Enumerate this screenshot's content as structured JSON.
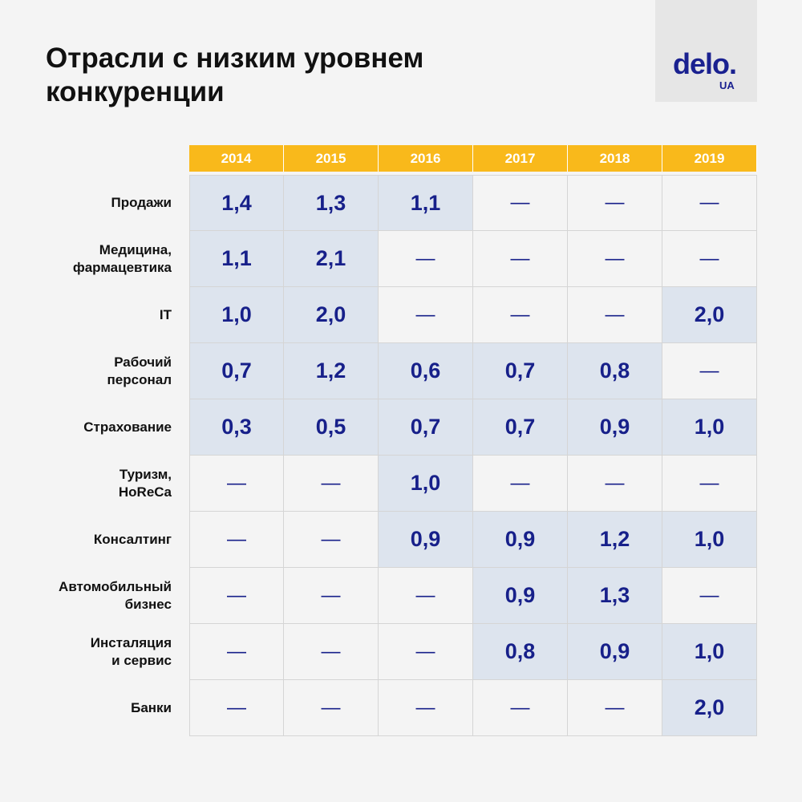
{
  "title": "Отрасли с низким уровнем конкуренции",
  "logo": {
    "main": "delo.",
    "sub": "UA"
  },
  "colors": {
    "header": "#f9b91b",
    "highlight": "#dde4ee",
    "value_text": "#17208a",
    "background": "#f4f4f4"
  },
  "chart_data": {
    "type": "table",
    "title": "Отрасли с низким уровнем конкуренции",
    "columns": [
      "2014",
      "2015",
      "2016",
      "2017",
      "2018",
      "2019"
    ],
    "rows": [
      {
        "label": "Продажи",
        "values": [
          "1,4",
          "1,3",
          "1,1",
          "—",
          "—",
          "—"
        ]
      },
      {
        "label": "Медицина, фармацевтика",
        "values": [
          "1,1",
          "2,1",
          "—",
          "—",
          "—",
          "—"
        ]
      },
      {
        "label": "IT",
        "values": [
          "1,0",
          "2,0",
          "—",
          "—",
          "—",
          "2,0"
        ]
      },
      {
        "label": "Рабочий персонал",
        "values": [
          "0,7",
          "1,2",
          "0,6",
          "0,7",
          "0,8",
          "—"
        ]
      },
      {
        "label": "Страхование",
        "values": [
          "0,3",
          "0,5",
          "0,7",
          "0,7",
          "0,9",
          "1,0"
        ]
      },
      {
        "label": "Туризм, HoReCa",
        "values": [
          "—",
          "—",
          "1,0",
          "—",
          "—",
          "—"
        ]
      },
      {
        "label": "Консалтинг",
        "values": [
          "—",
          "—",
          "0,9",
          "0,9",
          "1,2",
          "1,0"
        ]
      },
      {
        "label": "Автомобильный бизнес",
        "values": [
          "—",
          "—",
          "—",
          "0,9",
          "1,3",
          "—"
        ]
      },
      {
        "label": "Инсталяция и сервис",
        "values": [
          "—",
          "—",
          "—",
          "0,8",
          "0,9",
          "1,0"
        ]
      },
      {
        "label": "Банки",
        "values": [
          "—",
          "—",
          "—",
          "—",
          "—",
          "2,0"
        ]
      }
    ]
  }
}
